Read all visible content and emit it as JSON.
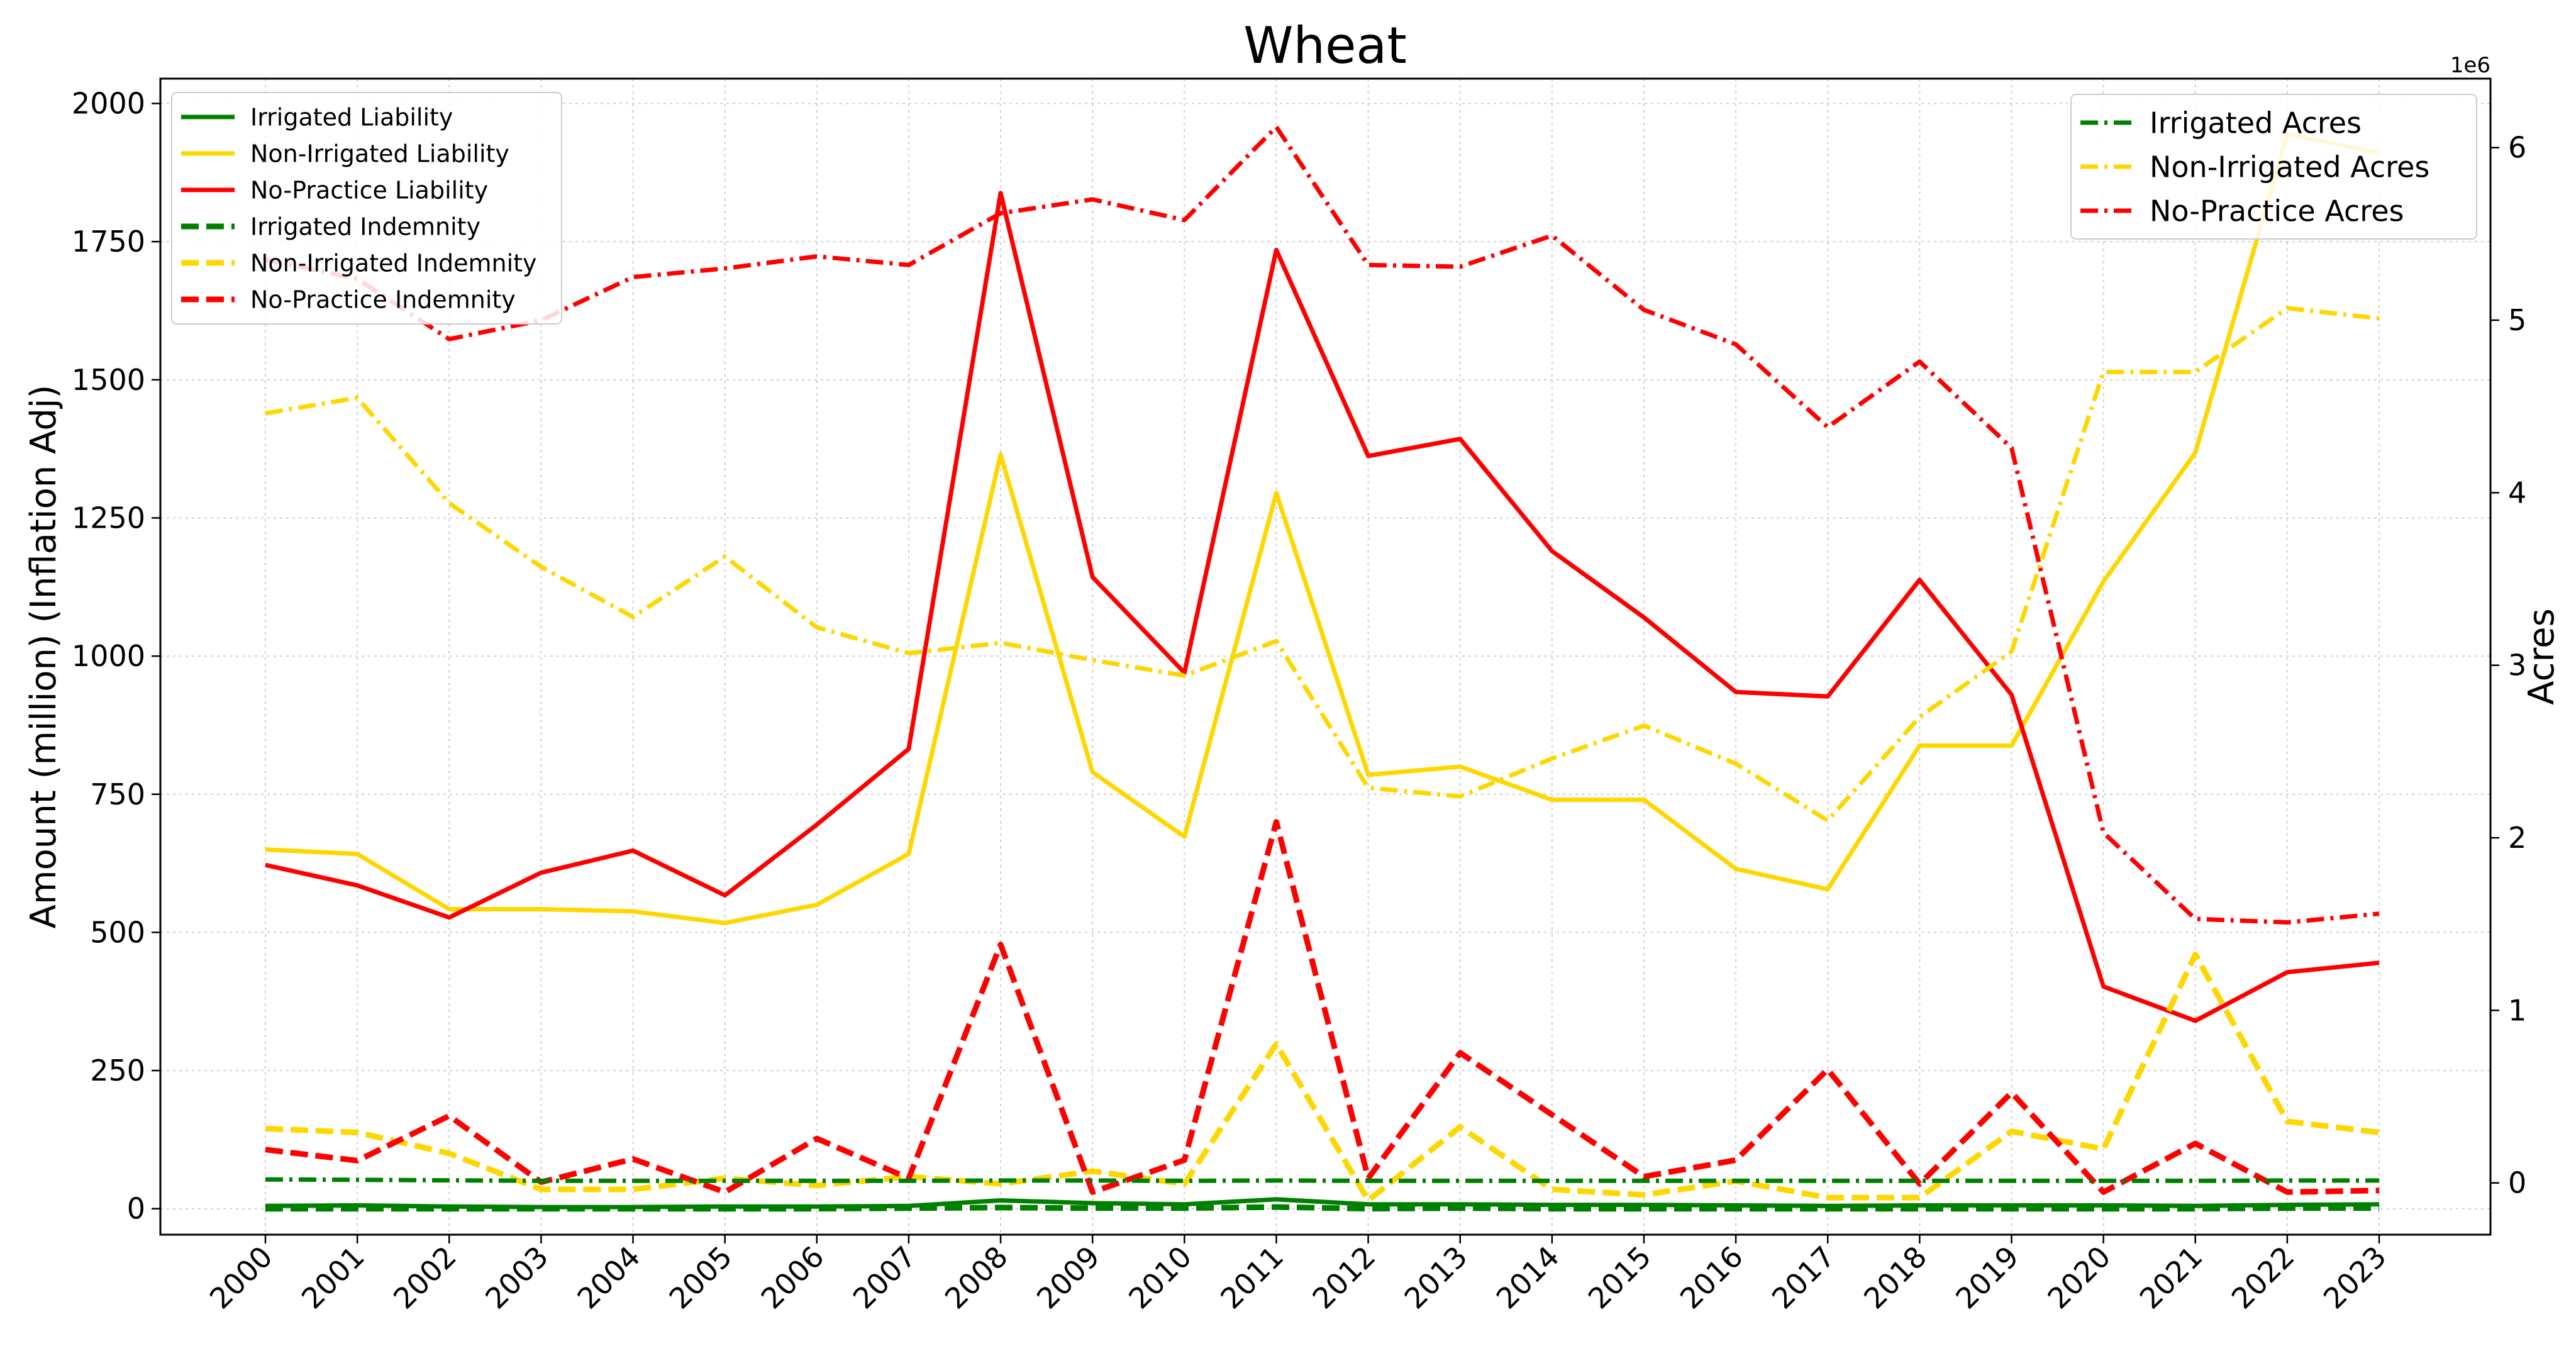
{
  "chart_data": {
    "type": "line",
    "title": "Wheat",
    "xlabel": "",
    "ylabel": "Amount (million) (Inflation Adj)",
    "y2label": "Acres",
    "y2_offset_text": "1e6",
    "categories": [
      "2000",
      "2001",
      "2002",
      "2003",
      "2004",
      "2005",
      "2006",
      "2007",
      "2008",
      "2009",
      "2010",
      "2011",
      "2012",
      "2013",
      "2014",
      "2015",
      "2016",
      "2017",
      "2018",
      "2019",
      "2020",
      "2021",
      "2022",
      "2023"
    ],
    "ylim": [
      -47,
      2045
    ],
    "y2lim": [
      -300000.0,
      6400000.0
    ],
    "yticks": [
      0,
      250,
      500,
      750,
      1000,
      1250,
      1500,
      1750,
      2000
    ],
    "y2ticks": [
      0,
      1,
      2,
      3,
      4,
      5,
      6
    ],
    "grid": true,
    "legend_left_placement": "upper-left",
    "legend_right_placement": "upper-right",
    "series": [
      {
        "name": "Irrigated Liability",
        "axis": "left",
        "style": "solid",
        "color": "#008000",
        "values": [
          5,
          6,
          4,
          3,
          3,
          4,
          4,
          5,
          15,
          10,
          8,
          17,
          8,
          8,
          7,
          7,
          6,
          5,
          6,
          6,
          6,
          5,
          7,
          8
        ]
      },
      {
        "name": "Non-Irrigated Liability",
        "axis": "left",
        "style": "solid",
        "color": "#FFD700",
        "values": [
          650,
          642,
          542,
          542,
          538,
          517,
          550,
          642,
          1365,
          790,
          673,
          1295,
          785,
          800,
          740,
          740,
          615,
          578,
          838,
          838,
          1135,
          1368,
          1945,
          1910
        ]
      },
      {
        "name": "No-Practice Liability",
        "axis": "left",
        "style": "solid",
        "color": "#FF0000",
        "values": [
          622,
          585,
          527,
          608,
          648,
          567,
          695,
          832,
          1838,
          1143,
          970,
          1735,
          1362,
          1393,
          1190,
          1070,
          935,
          927,
          1138,
          930,
          402,
          340,
          428,
          445
        ]
      },
      {
        "name": "Irrigated Indemnity",
        "axis": "left",
        "style": "dashed",
        "color": "#008000",
        "values": [
          0,
          0,
          0,
          0,
          0,
          0,
          0,
          1,
          2,
          1,
          1,
          3,
          0,
          1,
          0,
          0,
          0,
          0,
          0,
          0,
          0,
          0,
          1,
          1
        ]
      },
      {
        "name": "Non-Irrigated Indemnity",
        "axis": "left",
        "style": "dashed",
        "color": "#FFD700",
        "values": [
          145,
          138,
          100,
          35,
          35,
          55,
          42,
          58,
          45,
          68,
          45,
          298,
          15,
          148,
          35,
          25,
          50,
          20,
          20,
          140,
          108,
          460,
          158,
          138
        ]
      },
      {
        "name": "No-Practice Indemnity",
        "axis": "left",
        "style": "dashed",
        "color": "#FF0000",
        "values": [
          107,
          87,
          168,
          48,
          90,
          30,
          127,
          55,
          478,
          30,
          88,
          700,
          55,
          282,
          170,
          58,
          88,
          252,
          45,
          210,
          30,
          118,
          30,
          33
        ]
      },
      {
        "name": "Irrigated Acres",
        "axis": "right",
        "style": "dashdot",
        "color": "#008000",
        "values": [
          20000,
          18000,
          15000,
          12000,
          12000,
          12000,
          12000,
          12000,
          14000,
          14000,
          12000,
          14000,
          12000,
          12000,
          12000,
          12000,
          12000,
          12000,
          12000,
          12000,
          12000,
          12000,
          14000,
          14000
        ]
      },
      {
        "name": "Non-Irrigated Acres",
        "axis": "right",
        "style": "dashdot",
        "color": "#FFD700",
        "values": [
          4460000,
          4550000,
          3940000,
          3570000,
          3280000,
          3630000,
          3220000,
          3070000,
          3130000,
          3030000,
          2940000,
          3140000,
          2290000,
          2240000,
          2460000,
          2650000,
          2430000,
          2100000,
          2700000,
          3080000,
          4700000,
          4700000,
          5070000,
          5010000
        ]
      },
      {
        "name": "No-Practice Acres",
        "axis": "right",
        "style": "dashdot",
        "color": "#FF0000",
        "values": [
          5350000,
          5240000,
          4890000,
          5000000,
          5250000,
          5300000,
          5370000,
          5320000,
          5620000,
          5700000,
          5580000,
          6120000,
          5320000,
          5310000,
          5490000,
          5060000,
          4860000,
          4380000,
          4760000,
          4260000,
          2030000,
          1530000,
          1510000,
          1560000
        ]
      }
    ]
  }
}
